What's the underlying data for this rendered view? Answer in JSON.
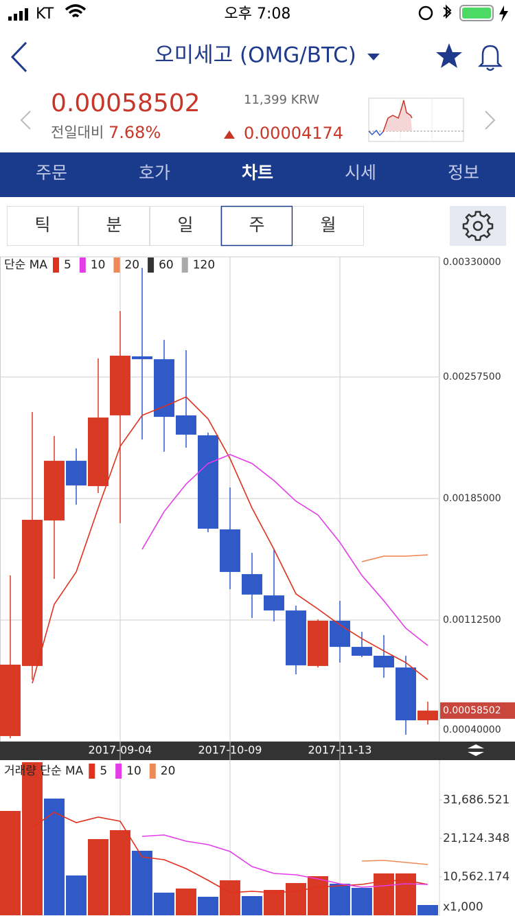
{
  "status_bar": {
    "carrier": "KT",
    "time": "오후 7:08"
  },
  "header": {
    "title": "오미세고 (OMG/BTC)"
  },
  "price": {
    "current": "0.00058502",
    "krw": "11,399 KRW",
    "change_label": "전일대비",
    "change_pct": "7.68%",
    "change_abs": "0.00004174"
  },
  "tabs": {
    "items": [
      "주문",
      "호가",
      "차트",
      "시세",
      "정보"
    ],
    "active": 2
  },
  "periods": {
    "items": [
      "틱",
      "분",
      "일",
      "주",
      "월"
    ],
    "active": 3
  },
  "chart_data": [
    {
      "type": "candlestick",
      "legend_title": "단순 MA",
      "up_color": "#d93a26",
      "down_color": "#2f5ac8",
      "grid": true,
      "categories": [
        null,
        null,
        null,
        null,
        null,
        "2017-09-04",
        null,
        null,
        null,
        null,
        "2017-10-09",
        null,
        null,
        null,
        null,
        "2017-11-13",
        null,
        null,
        null,
        null
      ],
      "open": [
        0.000433,
        0.000851,
        0.001719,
        0.002075,
        0.001924,
        0.002346,
        0.002698,
        0.002681,
        0.002346,
        0.002227,
        0.001666,
        0.001399,
        0.001272,
        0.001182,
        0.000851,
        0.001121,
        0.000965,
        0.000912,
        0.000842,
        0.000527
      ],
      "high": [
        0.001391,
        0.002366,
        0.002223,
        0.002149,
        0.002686,
        0.002968,
        0.003226,
        0.002796,
        0.002735,
        0.002243,
        0.001916,
        0.001526,
        0.001547,
        0.001211,
        0.001129,
        0.00124,
        0.001055,
        0.001035,
        0.000912,
        0.000638
      ],
      "low": [
        0.00042,
        0.000769,
        0.001371,
        0.001813,
        0.001883,
        0.001703,
        0.002202,
        0.002129,
        0.002153,
        0.001649,
        0.001309,
        0.001137,
        0.001117,
        0.000801,
        0.000842,
        0.000871,
        0.000904,
        0.000781,
        0.000441,
        0.000502
      ],
      "close": [
        0.000859,
        0.001723,
        0.002075,
        0.001928,
        0.002333,
        0.002702,
        0.002681,
        0.002337,
        0.002231,
        0.00167,
        0.001412,
        0.001277,
        0.001182,
        0.000855,
        0.001121,
        0.000965,
        0.000912,
        0.000842,
        0.000527,
        0.00058502
      ],
      "ma": [
        {
          "name": "5",
          "color": "#e0301e",
          "values": [
            null,
            0.000748,
            0.001219,
            0.001412,
            0.001793,
            0.002161,
            0.002346,
            0.002399,
            0.002456,
            0.002325,
            0.002088,
            0.001793,
            0.001547,
            0.001281,
            0.001191,
            0.001096,
            0.001014,
            0.000941,
            0.000871,
            0.000769
          ]
        },
        {
          "name": "10",
          "color": "#e33ce8",
          "values": [
            null,
            null,
            null,
            null,
            null,
            null,
            0.001547,
            0.001772,
            0.001936,
            0.002059,
            0.002112,
            0.002059,
            0.001957,
            0.001834,
            0.001752,
            0.001588,
            0.001391,
            0.00124,
            0.001076,
            0.000973
          ]
        },
        {
          "name": "20",
          "color": "#ee8a58",
          "values": [
            null,
            null,
            null,
            null,
            null,
            null,
            null,
            null,
            null,
            null,
            null,
            null,
            null,
            null,
            null,
            null,
            0.001473,
            0.001506,
            0.001506,
            0.001514
          ]
        },
        {
          "name": "60",
          "color": "#333333"
        },
        {
          "name": "120",
          "color": "#aaaaaa"
        }
      ],
      "ylim": [
        0.0004,
        0.0033
      ],
      "yticks": [
        {
          "value": 0.0033,
          "label": "0.00330000"
        },
        {
          "value": 0.002575,
          "label": "0.00257500"
        },
        {
          "value": 0.00185,
          "label": "0.00185000"
        },
        {
          "value": 0.001125,
          "label": "0.00112500"
        },
        {
          "value": 0.0004,
          "label": "0.00040000"
        }
      ]
    },
    {
      "type": "bar",
      "legend_title": "거래량 단순 MA",
      "unit_label": "x1,000",
      "grid": false,
      "values": [
        28669,
        42060,
        32064,
        10939,
        20936,
        23388,
        17729,
        6224,
        7356,
        5092,
        9619,
        5281,
        6979,
        8865,
        10751,
        8676,
        7544,
        11505,
        11505,
        2829
      ],
      "colors": [
        "#d93a26",
        "#d93a26",
        "#2f5ac8",
        "#2f5ac8",
        "#d93a26",
        "#d93a26",
        "#2f5ac8",
        "#2f5ac8",
        "#d93a26",
        "#2f5ac8",
        "#d93a26",
        "#2f5ac8",
        "#d93a26",
        "#d93a26",
        "#d93a26",
        "#2f5ac8",
        "#2f5ac8",
        "#d93a26",
        "#d93a26",
        "#2f5ac8"
      ],
      "ma": [
        {
          "name": "5",
          "color": "#e0301e",
          "values": [
            null,
            24142,
            28292,
            25462,
            26971,
            25840,
            16032,
            15277,
            12825,
            9619,
            6224,
            6601,
            6224,
            6601,
            7733,
            8110,
            8487,
            9431,
            9619,
            8487
          ]
        },
        {
          "name": "10",
          "color": "#e33ce8",
          "values": [
            null,
            null,
            null,
            null,
            null,
            null,
            21690,
            22067,
            20370,
            19427,
            17541,
            13391,
            11505,
            11128,
            9996,
            8676,
            7733,
            8110,
            8676,
            8487
          ]
        },
        {
          "name": "20",
          "color": "#ee8a58",
          "values": [
            null,
            null,
            null,
            null,
            null,
            null,
            null,
            null,
            null,
            null,
            null,
            null,
            null,
            null,
            null,
            null,
            14900,
            15089,
            14523,
            13957
          ]
        }
      ],
      "ylim": [
        0,
        42437
      ],
      "yticks": [
        {
          "value": 31686.521,
          "label": "31,686.521"
        },
        {
          "value": 21124.348,
          "label": "21,124.348"
        },
        {
          "value": 10562.174,
          "label": "10,562.174"
        }
      ]
    }
  ]
}
